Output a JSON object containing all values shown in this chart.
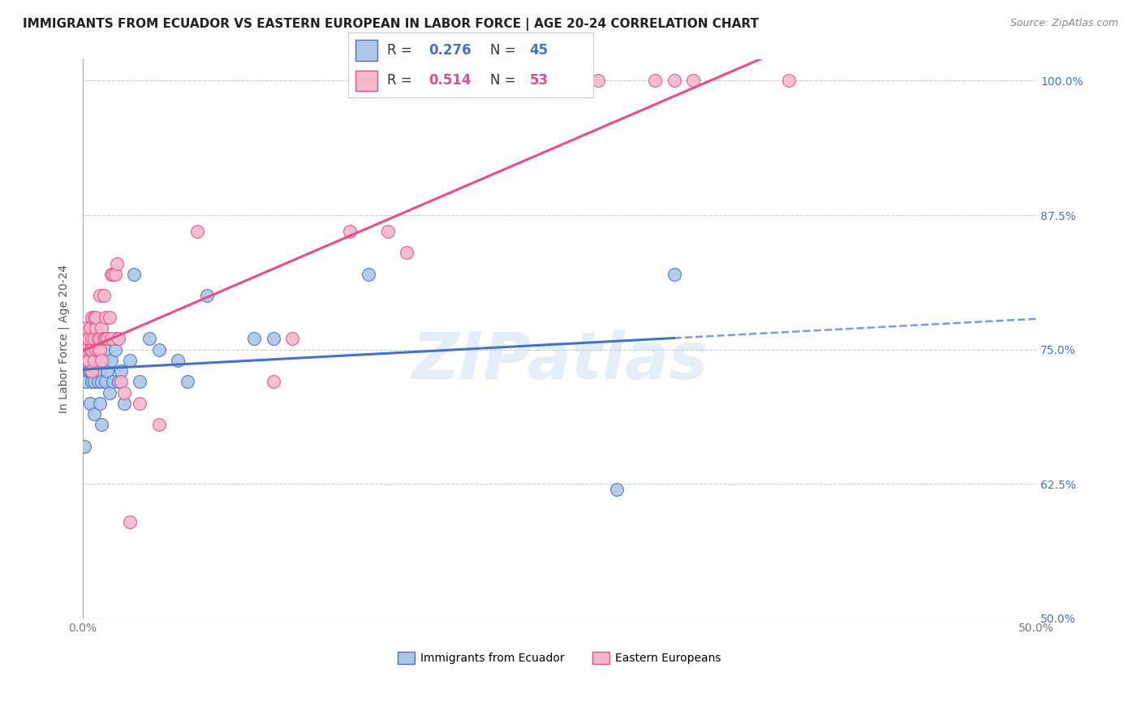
{
  "title": "IMMIGRANTS FROM ECUADOR VS EASTERN EUROPEAN IN LABOR FORCE | AGE 20-24 CORRELATION CHART",
  "source": "Source: ZipAtlas.com",
  "ylabel": "In Labor Force | Age 20-24",
  "xlim": [
    0.0,
    0.5
  ],
  "ylim": [
    0.5,
    1.02
  ],
  "xticks": [
    0.0,
    0.1,
    0.2,
    0.3,
    0.4,
    0.5
  ],
  "xticklabels": [
    "0.0%",
    "",
    "",
    "",
    "",
    "50.0%"
  ],
  "yticks": [
    0.5,
    0.625,
    0.75,
    0.875,
    1.0
  ],
  "yticklabels": [
    "50.0%",
    "62.5%",
    "75.0%",
    "87.5%",
    "100.0%"
  ],
  "legend_labels": [
    "Immigrants from Ecuador",
    "Eastern Europeans"
  ],
  "r_ecuador": 0.276,
  "n_ecuador": 45,
  "r_eastern": 0.514,
  "n_eastern": 53,
  "color_ecuador": "#adc6e8",
  "color_eastern": "#f5b8cb",
  "color_ecuador_line": "#4472c4",
  "color_eastern_line": "#e84c8b",
  "background_color": "#ffffff",
  "title_fontsize": 11,
  "watermark": "ZIPatlas",
  "ecuador_x": [
    0.001,
    0.002,
    0.003,
    0.003,
    0.004,
    0.004,
    0.005,
    0.005,
    0.005,
    0.006,
    0.006,
    0.006,
    0.007,
    0.007,
    0.008,
    0.008,
    0.009,
    0.009,
    0.01,
    0.01,
    0.011,
    0.012,
    0.012,
    0.013,
    0.014,
    0.015,
    0.016,
    0.017,
    0.018,
    0.019,
    0.02,
    0.022,
    0.025,
    0.027,
    0.03,
    0.035,
    0.04,
    0.05,
    0.055,
    0.065,
    0.09,
    0.1,
    0.15,
    0.28,
    0.31
  ],
  "ecuador_y": [
    0.66,
    0.72,
    0.73,
    0.75,
    0.7,
    0.73,
    0.72,
    0.74,
    0.76,
    0.69,
    0.72,
    0.75,
    0.73,
    0.76,
    0.72,
    0.75,
    0.7,
    0.73,
    0.68,
    0.72,
    0.74,
    0.72,
    0.75,
    0.73,
    0.71,
    0.74,
    0.72,
    0.75,
    0.76,
    0.72,
    0.73,
    0.7,
    0.74,
    0.82,
    0.72,
    0.76,
    0.75,
    0.74,
    0.72,
    0.8,
    0.76,
    0.76,
    0.82,
    0.62,
    0.82
  ],
  "eastern_x": [
    0.001,
    0.002,
    0.002,
    0.003,
    0.003,
    0.004,
    0.004,
    0.005,
    0.005,
    0.005,
    0.005,
    0.006,
    0.006,
    0.006,
    0.007,
    0.007,
    0.007,
    0.008,
    0.008,
    0.009,
    0.009,
    0.009,
    0.01,
    0.01,
    0.011,
    0.011,
    0.012,
    0.012,
    0.013,
    0.014,
    0.015,
    0.015,
    0.016,
    0.017,
    0.018,
    0.019,
    0.02,
    0.022,
    0.025,
    0.03,
    0.04,
    0.06,
    0.1,
    0.11,
    0.14,
    0.16,
    0.17,
    0.25,
    0.27,
    0.3,
    0.31,
    0.32,
    0.37
  ],
  "eastern_y": [
    0.76,
    0.75,
    0.77,
    0.74,
    0.76,
    0.75,
    0.77,
    0.75,
    0.76,
    0.78,
    0.73,
    0.74,
    0.76,
    0.78,
    0.75,
    0.77,
    0.78,
    0.75,
    0.76,
    0.75,
    0.76,
    0.8,
    0.74,
    0.77,
    0.76,
    0.8,
    0.76,
    0.78,
    0.76,
    0.78,
    0.76,
    0.82,
    0.82,
    0.82,
    0.83,
    0.76,
    0.72,
    0.71,
    0.59,
    0.7,
    0.68,
    0.86,
    0.72,
    0.76,
    0.86,
    0.86,
    0.84,
    1.0,
    1.0,
    1.0,
    1.0,
    1.0,
    1.0
  ]
}
